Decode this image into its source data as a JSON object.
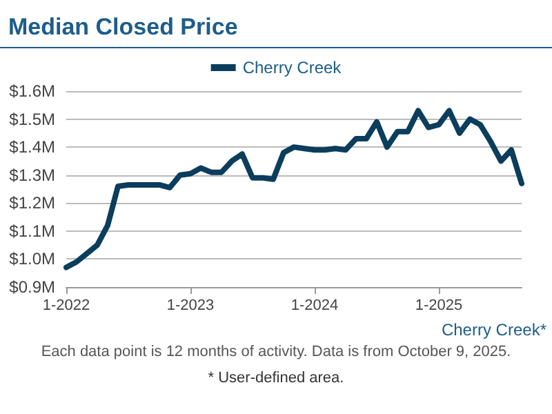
{
  "chart_data": {
    "type": "line",
    "title": "Median Closed Price",
    "categories": [
      "1-2022",
      null,
      null,
      null,
      null,
      null,
      null,
      null,
      null,
      null,
      null,
      null,
      "1-2023",
      null,
      null,
      null,
      null,
      null,
      null,
      null,
      null,
      null,
      null,
      null,
      "1-2024",
      null,
      null,
      null,
      null,
      null,
      null,
      null,
      null,
      null,
      null,
      null,
      "1-2025",
      null,
      null,
      null,
      null,
      null,
      null,
      null,
      null
    ],
    "series": [
      {
        "name": "Cherry Creek",
        "color": "#0b3d5c",
        "values": [
          0.97,
          0.99,
          1.02,
          1.05,
          1.12,
          1.26,
          1.265,
          1.265,
          1.265,
          1.265,
          1.255,
          1.3,
          1.305,
          1.325,
          1.31,
          1.31,
          1.35,
          1.375,
          1.29,
          1.29,
          1.285,
          1.38,
          1.4,
          1.395,
          1.39,
          1.39,
          1.395,
          1.39,
          1.43,
          1.43,
          1.49,
          1.4,
          1.455,
          1.455,
          1.53,
          1.47,
          1.48,
          1.53,
          1.45,
          1.5,
          1.48,
          1.42,
          1.35,
          1.39,
          1.27
        ]
      }
    ],
    "ylim": [
      0.9,
      1.6
    ],
    "yticks": [
      {
        "value": 0.9,
        "label": "$0.9M"
      },
      {
        "value": 1.0,
        "label": "$1.0M"
      },
      {
        "value": 1.1,
        "label": "$1.1M"
      },
      {
        "value": 1.2,
        "label": "$1.2M"
      },
      {
        "value": 1.3,
        "label": "$1.3M"
      },
      {
        "value": 1.4,
        "label": "$1.4M"
      },
      {
        "value": 1.5,
        "label": "$1.5M"
      },
      {
        "value": 1.6,
        "label": "$1.6M"
      }
    ],
    "grid": "y",
    "legend": "top",
    "marker": "none",
    "line_style": "solid",
    "annotations": [
      "Cherry Creek*",
      "Each data point is 12 months of activity. Data is from October 9, 2025.",
      "* User-defined area."
    ]
  }
}
